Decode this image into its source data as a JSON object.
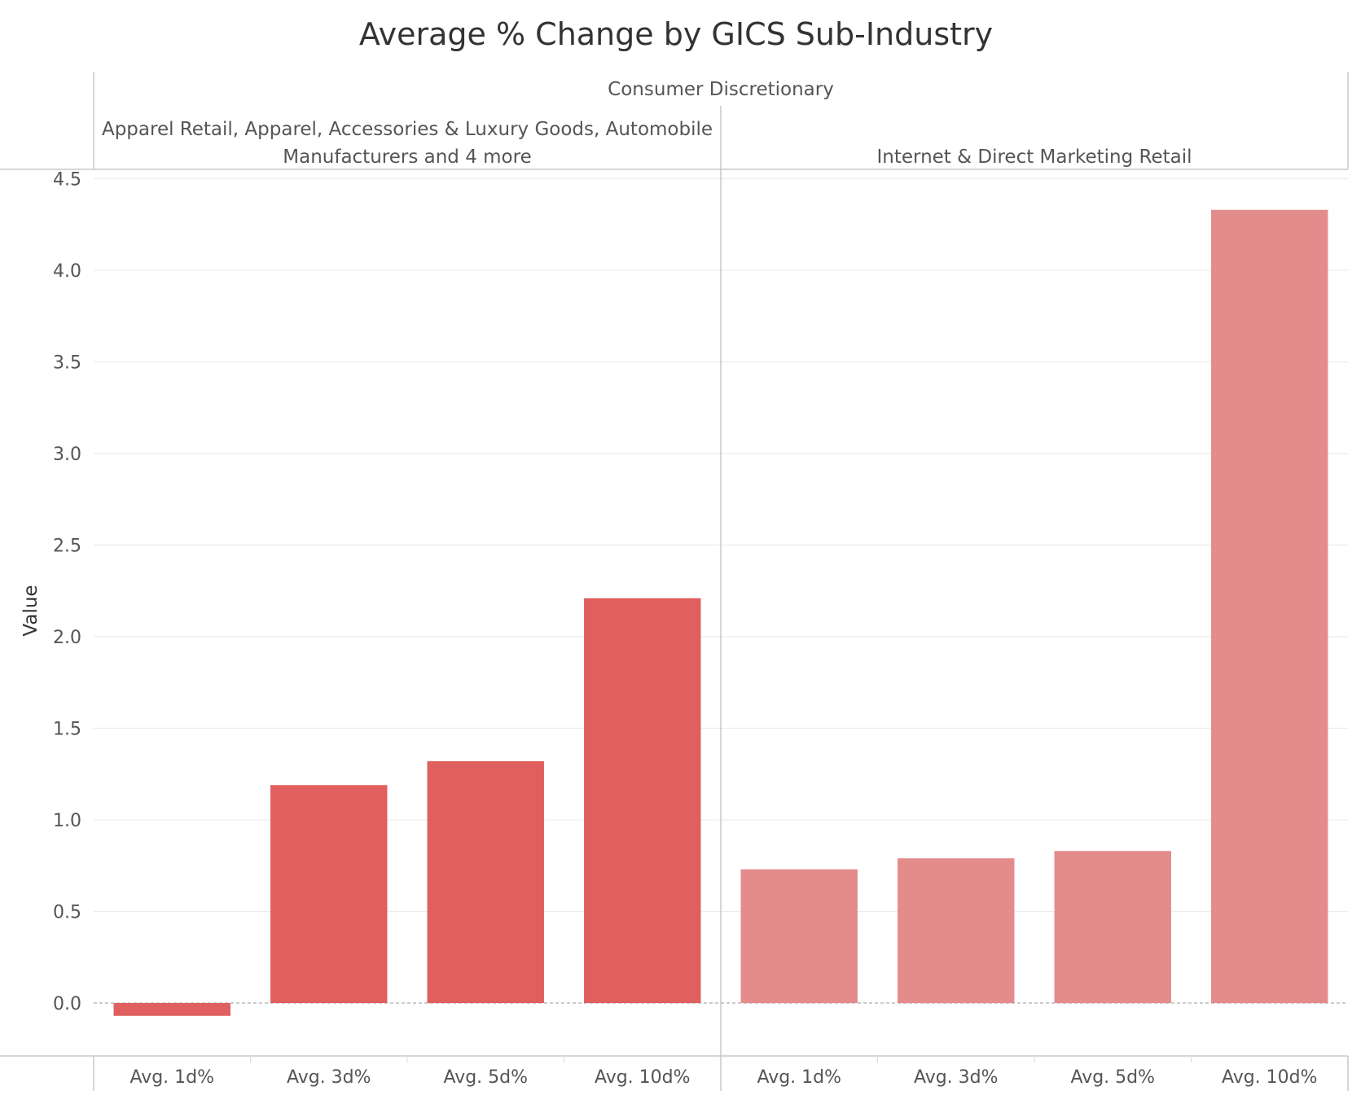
{
  "chart_data": {
    "type": "bar",
    "title": "Average % Change by GICS Sub-Industry",
    "ylabel": "Value",
    "xlabel": "",
    "ylim": [
      -0.25,
      4.5
    ],
    "yticks": [
      "0.0",
      "0.5",
      "1.0",
      "1.5",
      "2.0",
      "2.5",
      "3.0",
      "3.5",
      "4.0",
      "4.5"
    ],
    "grid": true,
    "column_header": "Consumer Discretionary",
    "panels": [
      {
        "header": [
          "Apparel Retail, Apparel, Accessories & Luxury Goods, Automobile",
          "Manufacturers and 4 more"
        ],
        "color": "#e05f5f",
        "categories": [
          "Avg. 1d%",
          "Avg. 3d%",
          "Avg. 5d%",
          "Avg. 10d%"
        ],
        "values": [
          -0.07,
          1.19,
          1.32,
          2.21
        ]
      },
      {
        "header": [
          "Internet & Direct Marketing Retail"
        ],
        "color": "#e48b8b",
        "categories": [
          "Avg. 1d%",
          "Avg. 3d%",
          "Avg. 5d%",
          "Avg. 10d%"
        ],
        "values": [
          0.73,
          0.79,
          0.83,
          4.33
        ]
      }
    ]
  }
}
